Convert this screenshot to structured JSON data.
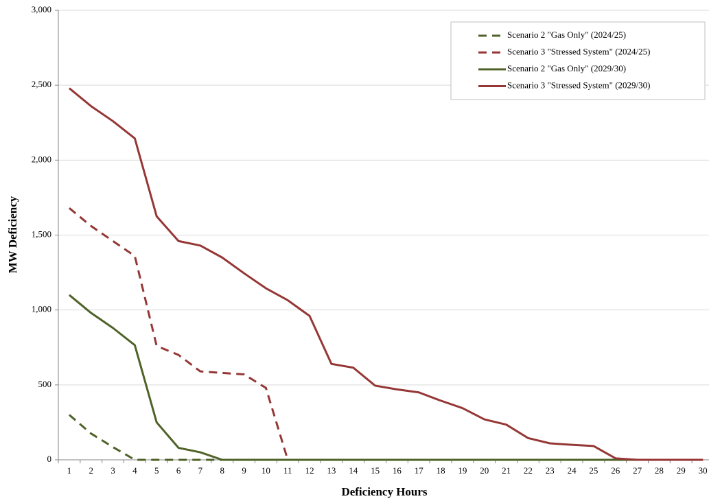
{
  "chart_data": {
    "type": "line",
    "x_label": "Deficiency Hours",
    "y_label": "MW Deficiency",
    "categories": [
      "1",
      "2",
      "3",
      "4",
      "5",
      "6",
      "7",
      "8",
      "9",
      "10",
      "11",
      "12",
      "13",
      "14",
      "15",
      "16",
      "17",
      "18",
      "19",
      "20",
      "21",
      "22",
      "23",
      "24",
      "25",
      "26",
      "27",
      "28",
      "29",
      "30"
    ],
    "series": [
      {
        "name": "Scenario 2 \"Gas Only\" (2024/25)",
        "color": "#4f6228",
        "dash": true,
        "values": [
          300,
          175,
          85,
          0,
          0,
          0,
          0,
          0,
          0,
          0,
          0,
          0,
          0,
          0,
          0,
          0,
          0,
          0,
          0,
          0,
          0,
          0,
          0,
          0,
          0,
          0,
          0,
          0,
          0,
          0
        ]
      },
      {
        "name": "Scenario 3 \"Stressed System\" (2024/25)",
        "color": "#953735",
        "dash": true,
        "values": [
          1680,
          1560,
          1460,
          1360,
          760,
          700,
          590,
          580,
          570,
          480,
          0,
          0,
          0,
          0,
          0,
          0,
          0,
          0,
          0,
          0,
          0,
          0,
          0,
          0,
          0,
          0,
          0,
          0,
          0,
          0
        ]
      },
      {
        "name": "Scenario 2 \"Gas Only\" (2029/30)",
        "color": "#4f6228",
        "dash": false,
        "values": [
          1100,
          980,
          880,
          765,
          250,
          80,
          50,
          0,
          0,
          0,
          0,
          0,
          0,
          0,
          0,
          0,
          0,
          0,
          0,
          0,
          0,
          0,
          0,
          0,
          0,
          0,
          0,
          0,
          0,
          0
        ]
      },
      {
        "name": "Scenario 3 \"Stressed System\" (2029/30)",
        "color": "#953735",
        "dash": false,
        "values": [
          2480,
          2360,
          2260,
          2145,
          1625,
          1460,
          1430,
          1350,
          1245,
          1145,
          1065,
          960,
          640,
          615,
          495,
          470,
          450,
          395,
          345,
          270,
          235,
          145,
          110,
          100,
          92,
          10,
          0,
          0,
          0,
          0
        ]
      }
    ],
    "ylim": [
      0,
      3000
    ],
    "yticks": [
      0,
      500,
      {
        "value": 1000,
        "label": "1,000"
      },
      {
        "value": 1500,
        "label": "1,500"
      },
      {
        "value": 2000,
        "label": "2,000"
      },
      {
        "value": 2500,
        "label": "2,500"
      },
      {
        "value": 3000,
        "label": "3,000"
      }
    ],
    "grid": true,
    "legend": "top-right"
  }
}
